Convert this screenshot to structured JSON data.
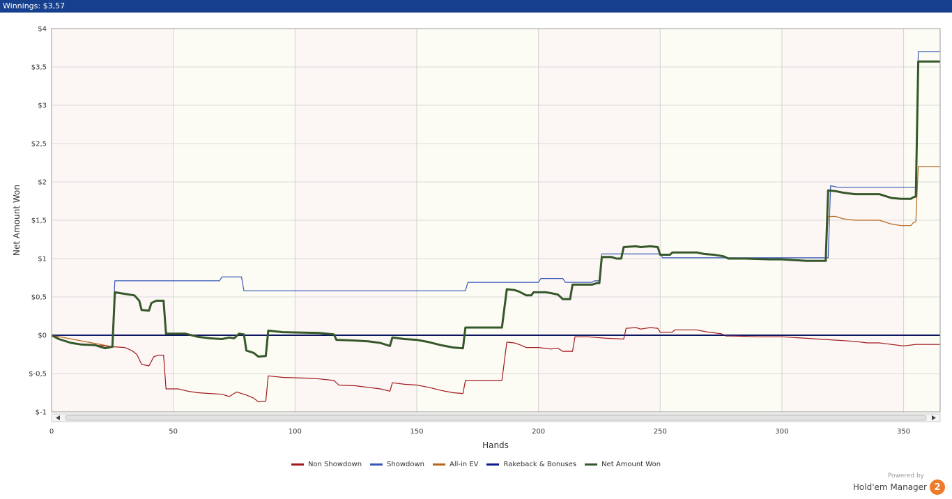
{
  "header": {
    "winnings_label": "Winnings: $3,57"
  },
  "brand": {
    "powered_by": "Powered by",
    "name": "Hold'em Manager",
    "badge": "2"
  },
  "chart_data": {
    "type": "line",
    "title": "",
    "xlabel": "Hands",
    "ylabel": "Net Amount Won",
    "xlim": [
      0,
      365
    ],
    "ylim": [
      -1,
      4
    ],
    "x_ticks": [
      0,
      50,
      100,
      150,
      200,
      250,
      300,
      350
    ],
    "x_tick_labels": [
      "0",
      "50",
      "100",
      "150",
      "200",
      "250",
      "300",
      "350"
    ],
    "y_ticks": [
      -1,
      -0.5,
      0,
      0.5,
      1,
      1.5,
      2,
      2.5,
      3,
      3.5,
      4
    ],
    "y_tick_labels": [
      "$-1",
      "$-0,5",
      "$0",
      "$0,5",
      "$1",
      "$1,5",
      "$2",
      "$2,5",
      "$3",
      "$3,5",
      "$4"
    ],
    "grid": true,
    "legend_position": "bottom",
    "series": [
      {
        "name": "Non Showdown",
        "color": "#a0181c",
        "width": 1.2,
        "points": [
          [
            0,
            0
          ],
          [
            3,
            -0.05
          ],
          [
            8,
            -0.1
          ],
          [
            12,
            -0.12
          ],
          [
            18,
            -0.13
          ],
          [
            22,
            -0.14
          ],
          [
            25,
            -0.15
          ],
          [
            30,
            -0.16
          ],
          [
            33,
            -0.2
          ],
          [
            35,
            -0.25
          ],
          [
            37,
            -0.38
          ],
          [
            40,
            -0.4
          ],
          [
            42,
            -0.28
          ],
          [
            44,
            -0.26
          ],
          [
            46,
            -0.26
          ],
          [
            47,
            -0.7
          ],
          [
            52,
            -0.7
          ],
          [
            56,
            -0.73
          ],
          [
            60,
            -0.75
          ],
          [
            65,
            -0.76
          ],
          [
            70,
            -0.77
          ],
          [
            73,
            -0.8
          ],
          [
            76,
            -0.74
          ],
          [
            80,
            -0.78
          ],
          [
            83,
            -0.82
          ],
          [
            85,
            -0.87
          ],
          [
            88,
            -0.86
          ],
          [
            89,
            -0.53
          ],
          [
            95,
            -0.55
          ],
          [
            105,
            -0.56
          ],
          [
            110,
            -0.57
          ],
          [
            116,
            -0.59
          ],
          [
            118,
            -0.65
          ],
          [
            125,
            -0.66
          ],
          [
            130,
            -0.68
          ],
          [
            135,
            -0.7
          ],
          [
            139,
            -0.73
          ],
          [
            140,
            -0.62
          ],
          [
            145,
            -0.64
          ],
          [
            150,
            -0.65
          ],
          [
            155,
            -0.68
          ],
          [
            160,
            -0.72
          ],
          [
            165,
            -0.75
          ],
          [
            169,
            -0.76
          ],
          [
            170,
            -0.59
          ],
          [
            185,
            -0.59
          ],
          [
            187,
            -0.09
          ],
          [
            190,
            -0.1
          ],
          [
            192,
            -0.12
          ],
          [
            195,
            -0.16
          ],
          [
            200,
            -0.16
          ],
          [
            205,
            -0.18
          ],
          [
            208,
            -0.17
          ],
          [
            210,
            -0.21
          ],
          [
            214,
            -0.21
          ],
          [
            215,
            -0.02
          ],
          [
            220,
            -0.02
          ],
          [
            224,
            -0.03
          ],
          [
            228,
            -0.04
          ],
          [
            235,
            -0.05
          ],
          [
            236,
            0.09
          ],
          [
            240,
            0.1
          ],
          [
            242,
            0.08
          ],
          [
            246,
            0.1
          ],
          [
            249,
            0.09
          ],
          [
            250,
            0.04
          ],
          [
            255,
            0.04
          ],
          [
            256,
            0.07
          ],
          [
            265,
            0.07
          ],
          [
            268,
            0.05
          ],
          [
            270,
            0.04
          ],
          [
            275,
            0.02
          ],
          [
            277,
            -0.01
          ],
          [
            280,
            -0.01
          ],
          [
            290,
            -0.02
          ],
          [
            300,
            -0.02
          ],
          [
            305,
            -0.03
          ],
          [
            310,
            -0.04
          ],
          [
            315,
            -0.05
          ],
          [
            320,
            -0.06
          ],
          [
            325,
            -0.07
          ],
          [
            330,
            -0.08
          ],
          [
            335,
            -0.1
          ],
          [
            340,
            -0.1
          ],
          [
            345,
            -0.12
          ],
          [
            350,
            -0.14
          ],
          [
            355,
            -0.12
          ],
          [
            365,
            -0.12
          ]
        ]
      },
      {
        "name": "Showdown",
        "color": "#3858b8",
        "width": 1.2,
        "points": [
          [
            0,
            0
          ],
          [
            25,
            0
          ],
          [
            26,
            0.71
          ],
          [
            69,
            0.71
          ],
          [
            70,
            0.76
          ],
          [
            78,
            0.76
          ],
          [
            79,
            0.58
          ],
          [
            170,
            0.58
          ],
          [
            171,
            0.69
          ],
          [
            200,
            0.69
          ],
          [
            201,
            0.74
          ],
          [
            210,
            0.74
          ],
          [
            211,
            0.69
          ],
          [
            222,
            0.69
          ],
          [
            223,
            0.71
          ],
          [
            225,
            0.71
          ],
          [
            226,
            1.06
          ],
          [
            250,
            1.06
          ],
          [
            251,
            1.01
          ],
          [
            300,
            1.01
          ],
          [
            319,
            1.01
          ],
          [
            320,
            1.95
          ],
          [
            323,
            1.93
          ],
          [
            355,
            1.93
          ],
          [
            356,
            3.7
          ],
          [
            365,
            3.7
          ]
        ]
      },
      {
        "name": "All-in EV",
        "color": "#b5651d",
        "width": 1.2,
        "points": [
          [
            0,
            0
          ],
          [
            25,
            -0.15
          ],
          [
            26,
            0.56
          ],
          [
            30,
            0.54
          ],
          [
            34,
            0.52
          ],
          [
            36,
            0.45
          ],
          [
            37,
            0.33
          ],
          [
            40,
            0.32
          ],
          [
            41,
            0.42
          ],
          [
            43,
            0.45
          ],
          [
            46,
            0.45
          ],
          [
            47,
            0.02
          ],
          [
            55,
            0.02
          ],
          [
            60,
            -0.02
          ],
          [
            65,
            -0.04
          ],
          [
            70,
            -0.05
          ],
          [
            73,
            -0.03
          ],
          [
            75,
            -0.04
          ],
          [
            77,
            0.02
          ],
          [
            79,
            0.01
          ],
          [
            80,
            -0.2
          ],
          [
            83,
            -0.23
          ],
          [
            85,
            -0.28
          ],
          [
            88,
            -0.27
          ],
          [
            89,
            0.06
          ],
          [
            95,
            0.04
          ],
          [
            110,
            0.03
          ],
          [
            116,
            0.01
          ],
          [
            117,
            -0.06
          ],
          [
            125,
            -0.07
          ],
          [
            130,
            -0.08
          ],
          [
            135,
            -0.1
          ],
          [
            139,
            -0.14
          ],
          [
            140,
            -0.03
          ],
          [
            145,
            -0.05
          ],
          [
            150,
            -0.06
          ],
          [
            155,
            -0.09
          ],
          [
            160,
            -0.13
          ],
          [
            165,
            -0.16
          ],
          [
            169,
            -0.17
          ],
          [
            170,
            0.1
          ],
          [
            185,
            0.1
          ],
          [
            187,
            0.6
          ],
          [
            190,
            0.59
          ],
          [
            192,
            0.57
          ],
          [
            195,
            0.52
          ],
          [
            197,
            0.52
          ],
          [
            198,
            0.56
          ],
          [
            203,
            0.56
          ],
          [
            205,
            0.55
          ],
          [
            208,
            0.53
          ],
          [
            210,
            0.47
          ],
          [
            213,
            0.47
          ],
          [
            214,
            0.66
          ],
          [
            222,
            0.66
          ],
          [
            224,
            0.68
          ],
          [
            225,
            0.68
          ],
          [
            226,
            1.02
          ],
          [
            230,
            1.02
          ],
          [
            232,
            1.0
          ],
          [
            234,
            1.0
          ],
          [
            235,
            1.15
          ],
          [
            240,
            1.16
          ],
          [
            242,
            1.15
          ],
          [
            246,
            1.16
          ],
          [
            249,
            1.15
          ],
          [
            250,
            1.05
          ],
          [
            254,
            1.05
          ],
          [
            255,
            1.08
          ],
          [
            265,
            1.08
          ],
          [
            268,
            1.06
          ],
          [
            272,
            1.05
          ],
          [
            276,
            1.03
          ],
          [
            278,
            1.0
          ],
          [
            285,
            1.0
          ],
          [
            295,
            0.99
          ],
          [
            300,
            0.99
          ],
          [
            305,
            0.98
          ],
          [
            310,
            0.97
          ],
          [
            315,
            0.97
          ],
          [
            318,
            0.97
          ],
          [
            319,
            1.55
          ],
          [
            322,
            1.55
          ],
          [
            325,
            1.52
          ],
          [
            330,
            1.5
          ],
          [
            340,
            1.5
          ],
          [
            345,
            1.45
          ],
          [
            349,
            1.43
          ],
          [
            353,
            1.43
          ],
          [
            354,
            1.47
          ],
          [
            355,
            1.48
          ],
          [
            356,
            2.2
          ],
          [
            365,
            2.2
          ]
        ]
      },
      {
        "name": "Rakeback & Bonuses",
        "color": "#0b1a8f",
        "width": 1.2,
        "points": [
          [
            0,
            0
          ],
          [
            365,
            0
          ]
        ]
      },
      {
        "name": "Net Amount Won",
        "color": "#35572a",
        "width": 3,
        "points": [
          [
            0,
            0
          ],
          [
            3,
            -0.05
          ],
          [
            8,
            -0.1
          ],
          [
            12,
            -0.12
          ],
          [
            18,
            -0.13
          ],
          [
            22,
            -0.17
          ],
          [
            25,
            -0.15
          ],
          [
            26,
            0.56
          ],
          [
            30,
            0.54
          ],
          [
            34,
            0.52
          ],
          [
            36,
            0.45
          ],
          [
            37,
            0.33
          ],
          [
            40,
            0.32
          ],
          [
            41,
            0.42
          ],
          [
            43,
            0.45
          ],
          [
            46,
            0.45
          ],
          [
            47,
            0.02
          ],
          [
            55,
            0.02
          ],
          [
            60,
            -0.02
          ],
          [
            65,
            -0.04
          ],
          [
            70,
            -0.05
          ],
          [
            73,
            -0.03
          ],
          [
            75,
            -0.04
          ],
          [
            77,
            0.02
          ],
          [
            79,
            0.01
          ],
          [
            80,
            -0.2
          ],
          [
            83,
            -0.23
          ],
          [
            85,
            -0.28
          ],
          [
            88,
            -0.27
          ],
          [
            89,
            0.06
          ],
          [
            95,
            0.04
          ],
          [
            110,
            0.03
          ],
          [
            116,
            0.01
          ],
          [
            117,
            -0.06
          ],
          [
            125,
            -0.07
          ],
          [
            130,
            -0.08
          ],
          [
            135,
            -0.1
          ],
          [
            139,
            -0.14
          ],
          [
            140,
            -0.03
          ],
          [
            145,
            -0.05
          ],
          [
            150,
            -0.06
          ],
          [
            155,
            -0.09
          ],
          [
            160,
            -0.13
          ],
          [
            165,
            -0.16
          ],
          [
            169,
            -0.17
          ],
          [
            170,
            0.1
          ],
          [
            185,
            0.1
          ],
          [
            187,
            0.6
          ],
          [
            190,
            0.59
          ],
          [
            192,
            0.57
          ],
          [
            195,
            0.52
          ],
          [
            197,
            0.52
          ],
          [
            198,
            0.56
          ],
          [
            203,
            0.56
          ],
          [
            205,
            0.55
          ],
          [
            208,
            0.53
          ],
          [
            210,
            0.47
          ],
          [
            213,
            0.47
          ],
          [
            214,
            0.66
          ],
          [
            222,
            0.66
          ],
          [
            224,
            0.68
          ],
          [
            225,
            0.68
          ],
          [
            226,
            1.02
          ],
          [
            230,
            1.02
          ],
          [
            232,
            1.0
          ],
          [
            234,
            1.0
          ],
          [
            235,
            1.15
          ],
          [
            240,
            1.16
          ],
          [
            242,
            1.15
          ],
          [
            246,
            1.16
          ],
          [
            249,
            1.15
          ],
          [
            250,
            1.05
          ],
          [
            254,
            1.05
          ],
          [
            255,
            1.08
          ],
          [
            265,
            1.08
          ],
          [
            268,
            1.06
          ],
          [
            272,
            1.05
          ],
          [
            276,
            1.03
          ],
          [
            278,
            1.0
          ],
          [
            285,
            1.0
          ],
          [
            295,
            0.99
          ],
          [
            300,
            0.99
          ],
          [
            305,
            0.98
          ],
          [
            310,
            0.97
          ],
          [
            315,
            0.97
          ],
          [
            318,
            0.97
          ],
          [
            319,
            1.89
          ],
          [
            322,
            1.88
          ],
          [
            325,
            1.86
          ],
          [
            330,
            1.84
          ],
          [
            340,
            1.84
          ],
          [
            345,
            1.79
          ],
          [
            349,
            1.78
          ],
          [
            353,
            1.78
          ],
          [
            354,
            1.8
          ],
          [
            355,
            1.81
          ],
          [
            356,
            3.57
          ],
          [
            365,
            3.57
          ]
        ]
      }
    ]
  }
}
